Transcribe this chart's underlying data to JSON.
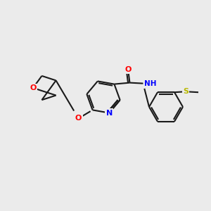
{
  "background_color": "#ebebeb",
  "bond_color": "#1a1a1a",
  "atom_colors": {
    "O": "#ff0000",
    "N": "#0000ff",
    "S": "#b8b800",
    "C": "#1a1a1a",
    "H": "#1a1a1a"
  },
  "font_size": 8.0,
  "line_width": 1.5,
  "figsize": [
    3.0,
    3.0
  ],
  "dpi": 100
}
